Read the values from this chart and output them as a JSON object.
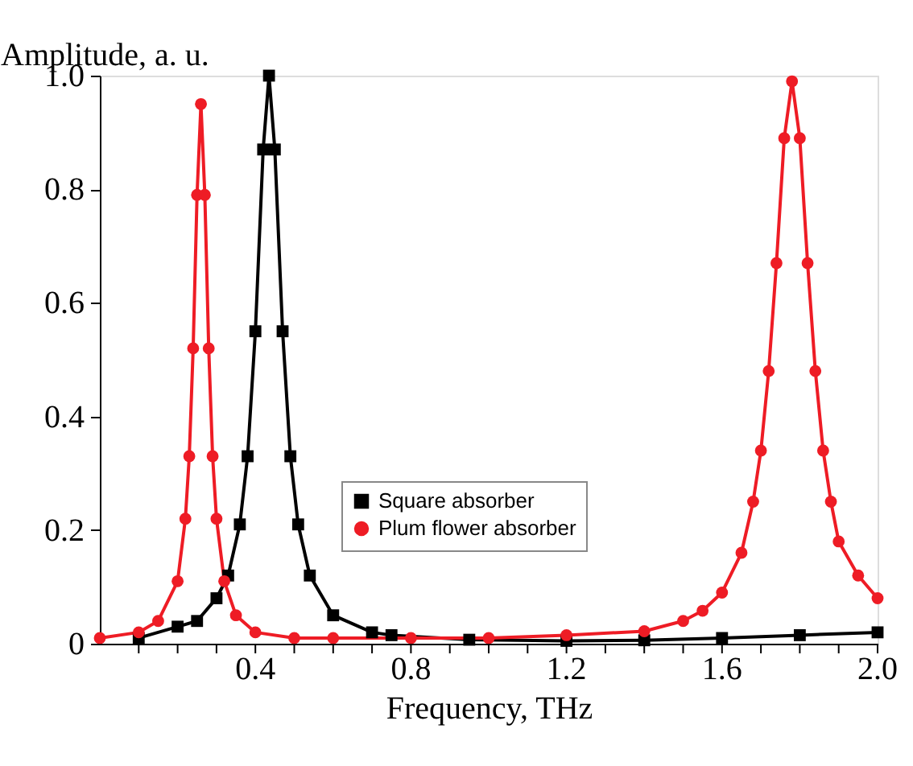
{
  "chart_data": {
    "type": "line",
    "xlabel": "Frequency, THz",
    "ylabel": "Amplitude, a. u.",
    "xlim": [
      0,
      2.0
    ],
    "ylim": [
      0,
      1.0
    ],
    "xticks": [
      {
        "value": 0.1,
        "label": null
      },
      {
        "value": 0.2,
        "label": null
      },
      {
        "value": 0.3,
        "label": null
      },
      {
        "value": 0.4,
        "label": "0.4"
      },
      {
        "value": 0.5,
        "label": null
      },
      {
        "value": 0.6,
        "label": null
      },
      {
        "value": 0.7,
        "label": null
      },
      {
        "value": 0.8,
        "label": "0.8"
      },
      {
        "value": 0.9,
        "label": null
      },
      {
        "value": 1.0,
        "label": null
      },
      {
        "value": 1.1,
        "label": null
      },
      {
        "value": 1.2,
        "label": "1.2"
      },
      {
        "value": 1.3,
        "label": null
      },
      {
        "value": 1.4,
        "label": null
      },
      {
        "value": 1.5,
        "label": null
      },
      {
        "value": 1.6,
        "label": "1.6"
      },
      {
        "value": 1.7,
        "label": null
      },
      {
        "value": 1.8,
        "label": null
      },
      {
        "value": 1.9,
        "label": null
      },
      {
        "value": 2.0,
        "label": "2.0"
      }
    ],
    "yticks": [
      {
        "value": 0,
        "label": "0"
      },
      {
        "value": 0.2,
        "label": "0.2"
      },
      {
        "value": 0.4,
        "label": "0.4"
      },
      {
        "value": 0.6,
        "label": "0.6"
      },
      {
        "value": 0.8,
        "label": "0.8"
      },
      {
        "value": 1.0,
        "label": "1.0"
      }
    ],
    "grid": false,
    "legend": "bottom",
    "line_style": "solid",
    "series": [
      {
        "name": "Square absorber",
        "color": "#000000",
        "marker": "square",
        "x": [
          0.1,
          0.2,
          0.25,
          0.3,
          0.33,
          0.36,
          0.38,
          0.4,
          0.42,
          0.435,
          0.45,
          0.47,
          0.49,
          0.51,
          0.54,
          0.6,
          0.7,
          0.75,
          0.95,
          1.2,
          1.4,
          1.6,
          1.8,
          2.0
        ],
        "values": [
          0.01,
          0.03,
          0.04,
          0.08,
          0.12,
          0.21,
          0.33,
          0.55,
          0.87,
          1.0,
          0.87,
          0.55,
          0.33,
          0.21,
          0.12,
          0.05,
          0.02,
          0.015,
          0.007,
          0.005,
          0.006,
          0.01,
          0.015,
          0.02
        ]
      },
      {
        "name": "Plum flower absorber",
        "color": "#ee1c25",
        "marker": "circle",
        "x": [
          0.0,
          0.1,
          0.15,
          0.2,
          0.22,
          0.23,
          0.24,
          0.25,
          0.26,
          0.27,
          0.28,
          0.29,
          0.3,
          0.32,
          0.35,
          0.4,
          0.5,
          0.6,
          0.8,
          1.0,
          1.2,
          1.4,
          1.5,
          1.55,
          1.6,
          1.65,
          1.68,
          1.7,
          1.72,
          1.74,
          1.76,
          1.78,
          1.8,
          1.82,
          1.84,
          1.86,
          1.88,
          1.9,
          1.95,
          2.0
        ],
        "values": [
          0.01,
          0.02,
          0.04,
          0.11,
          0.22,
          0.33,
          0.52,
          0.79,
          0.95,
          0.79,
          0.52,
          0.33,
          0.22,
          0.11,
          0.05,
          0.02,
          0.01,
          0.01,
          0.01,
          0.01,
          0.015,
          0.022,
          0.04,
          0.058,
          0.09,
          0.16,
          0.25,
          0.34,
          0.48,
          0.67,
          0.89,
          0.99,
          0.89,
          0.67,
          0.48,
          0.34,
          0.25,
          0.18,
          0.12,
          0.08
        ]
      }
    ]
  }
}
